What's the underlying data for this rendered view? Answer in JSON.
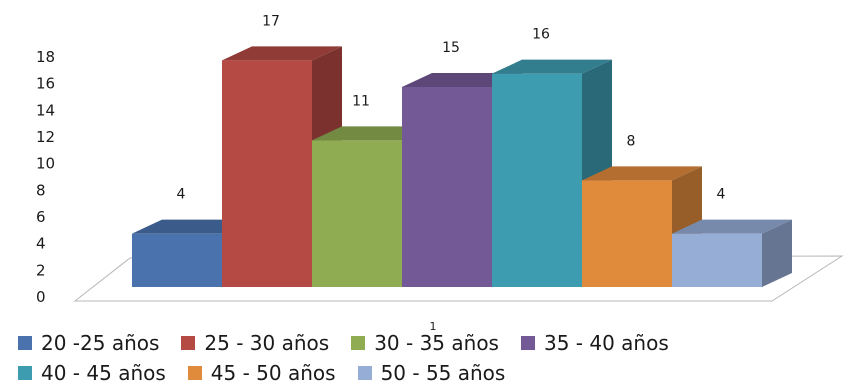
{
  "chart_data": {
    "type": "bar",
    "categories": [
      "1"
    ],
    "series": [
      {
        "name": "20 -25 años",
        "values": [
          4
        ],
        "color": "#4a73ad"
      },
      {
        "name": "25 - 30 años",
        "values": [
          17
        ],
        "color": "#b54a45"
      },
      {
        "name": "30 - 35 años",
        "values": [
          11
        ],
        "color": "#8fac52"
      },
      {
        "name": "35 - 40 años",
        "values": [
          15
        ],
        "color": "#735996"
      },
      {
        "name": "40 - 45 años",
        "values": [
          16
        ],
        "color": "#3e9cb1"
      },
      {
        "name": "45 - 50 años",
        "values": [
          8
        ],
        "color": "#e08a3c"
      },
      {
        "name": "50 - 55 años",
        "values": [
          4
        ],
        "color": "#96add6"
      }
    ],
    "ylim": [
      0,
      18
    ],
    "yticks": [
      0,
      2,
      4,
      6,
      8,
      10,
      12,
      14,
      16,
      18
    ],
    "grid": false,
    "legend_position": "bottom",
    "style": "3d-column"
  }
}
